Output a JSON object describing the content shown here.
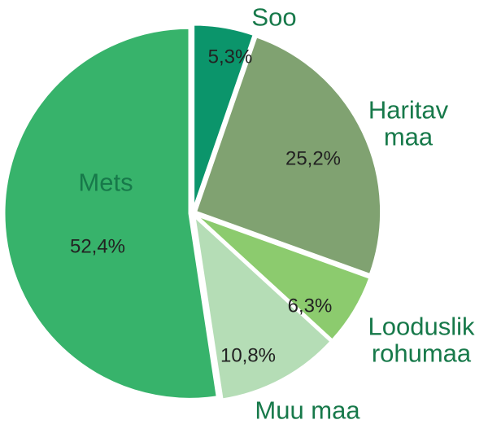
{
  "chart_data": {
    "type": "pie",
    "categories": [
      "Soo",
      "Haritav maa",
      "Looduslik rohumaa",
      "Muu maa",
      "Mets"
    ],
    "values": [
      5.3,
      25.2,
      6.3,
      10.8,
      52.4
    ],
    "value_labels": [
      "5,3%",
      "25,2%",
      "6,3%",
      "10,8%",
      "52,4%"
    ],
    "colors": [
      "#0b956b",
      "#80a271",
      "#8ccb6e",
      "#b5ddb6",
      "#37b36b"
    ]
  }
}
